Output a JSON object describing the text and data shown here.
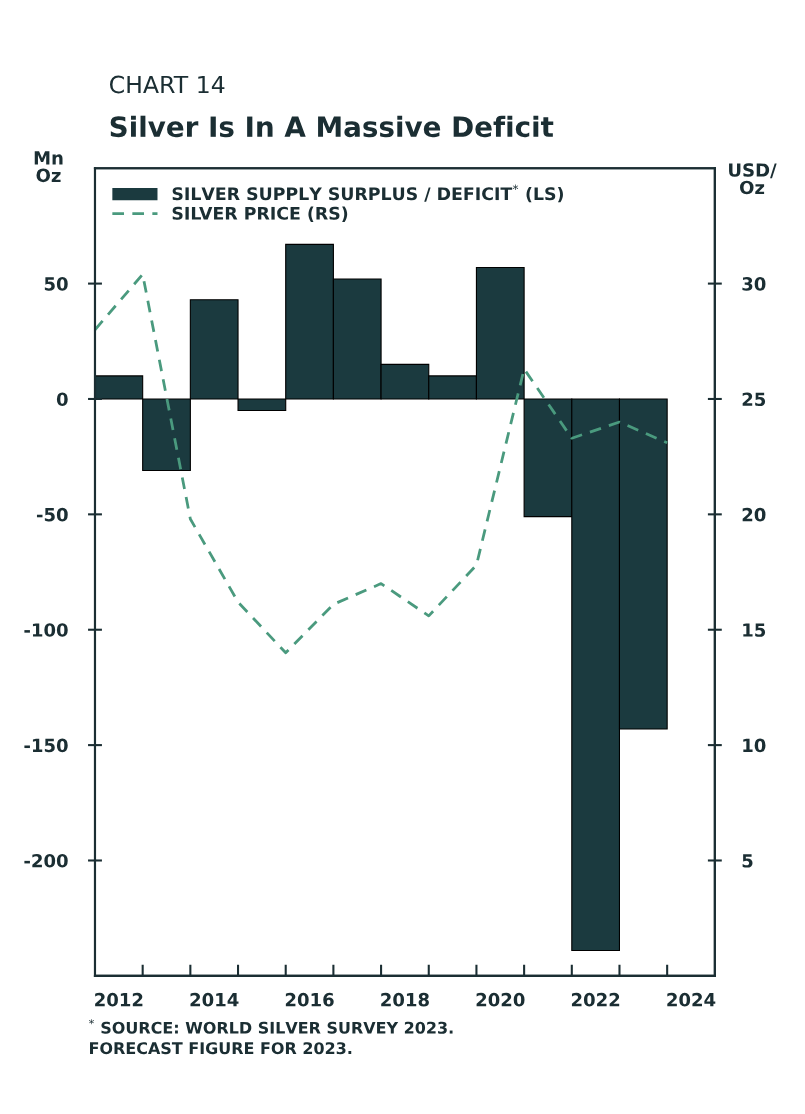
{
  "chart_data": {
    "type": "bar",
    "subtitle": "CHART 14",
    "title": "Silver Is In A Massive Deficit",
    "ylabel": "Mn\nOz",
    "y2label": "USD/\nOz",
    "x": [
      2012,
      2013,
      2014,
      2015,
      2016,
      2017,
      2018,
      2019,
      2020,
      2021,
      2022,
      2023
    ],
    "series": [
      {
        "name": "SILVER SUPPLY SURPLUS / DEFICIT$^{*}$ (LS)",
        "color": "#1b3a3f",
        "values": [
          10,
          -31,
          43,
          -5,
          67,
          52,
          15,
          10,
          57,
          -51,
          -239,
          -143
        ]
      },
      {
        "name": "SILVER PRICE (RS)",
        "type": "line",
        "axis": "y2",
        "color": "#4a9a7e",
        "line_style": "dashed",
        "x": [
          2011.5,
          2012.5,
          2013.5,
          2014.5,
          2015.5,
          2016.5,
          2017.5,
          2018.5,
          2019.5,
          2020.5,
          2021.5,
          2022.5,
          2023.5
        ],
        "values": [
          28,
          30.4,
          19.8,
          16.2,
          14,
          16.1,
          17,
          15.6,
          17.8,
          26.3,
          23.3,
          24,
          23.1
        ]
      }
    ],
    "xlim": [
      2011.5,
      2024.5
    ],
    "xticks": [
      2012,
      2014,
      2016,
      2018,
      2020,
      2022,
      2024,
      {
        "value": 2012.5,
        "label": null
      },
      {
        "value": 2013.5,
        "label": null
      },
      {
        "value": 2014.5,
        "label": null
      },
      {
        "value": 2015.5,
        "label": null
      },
      {
        "value": 2016.5,
        "label": null
      },
      {
        "value": 2017.5,
        "label": null
      },
      {
        "value": 2018.5,
        "label": null
      },
      {
        "value": 2019.5,
        "label": null
      },
      {
        "value": 2020.5,
        "label": null
      },
      {
        "value": 2021.5,
        "label": null
      },
      {
        "value": 2022.5,
        "label": null
      },
      {
        "value": 2023.5,
        "label": null
      }
    ],
    "ylim": [
      -250,
      100
    ],
    "yticks": [
      -200,
      -150,
      -100,
      -50,
      0,
      50
    ],
    "y2lim": [
      0,
      35
    ],
    "y2ticks": [
      5,
      10,
      15,
      20,
      25,
      30
    ],
    "grid": false,
    "legend": "top left",
    "annotations": [
      "$^{*}$ SOURCE: WORLD SILVER SURVEY 2023.\nFORECAST FIGURE FOR 2023."
    ]
  }
}
